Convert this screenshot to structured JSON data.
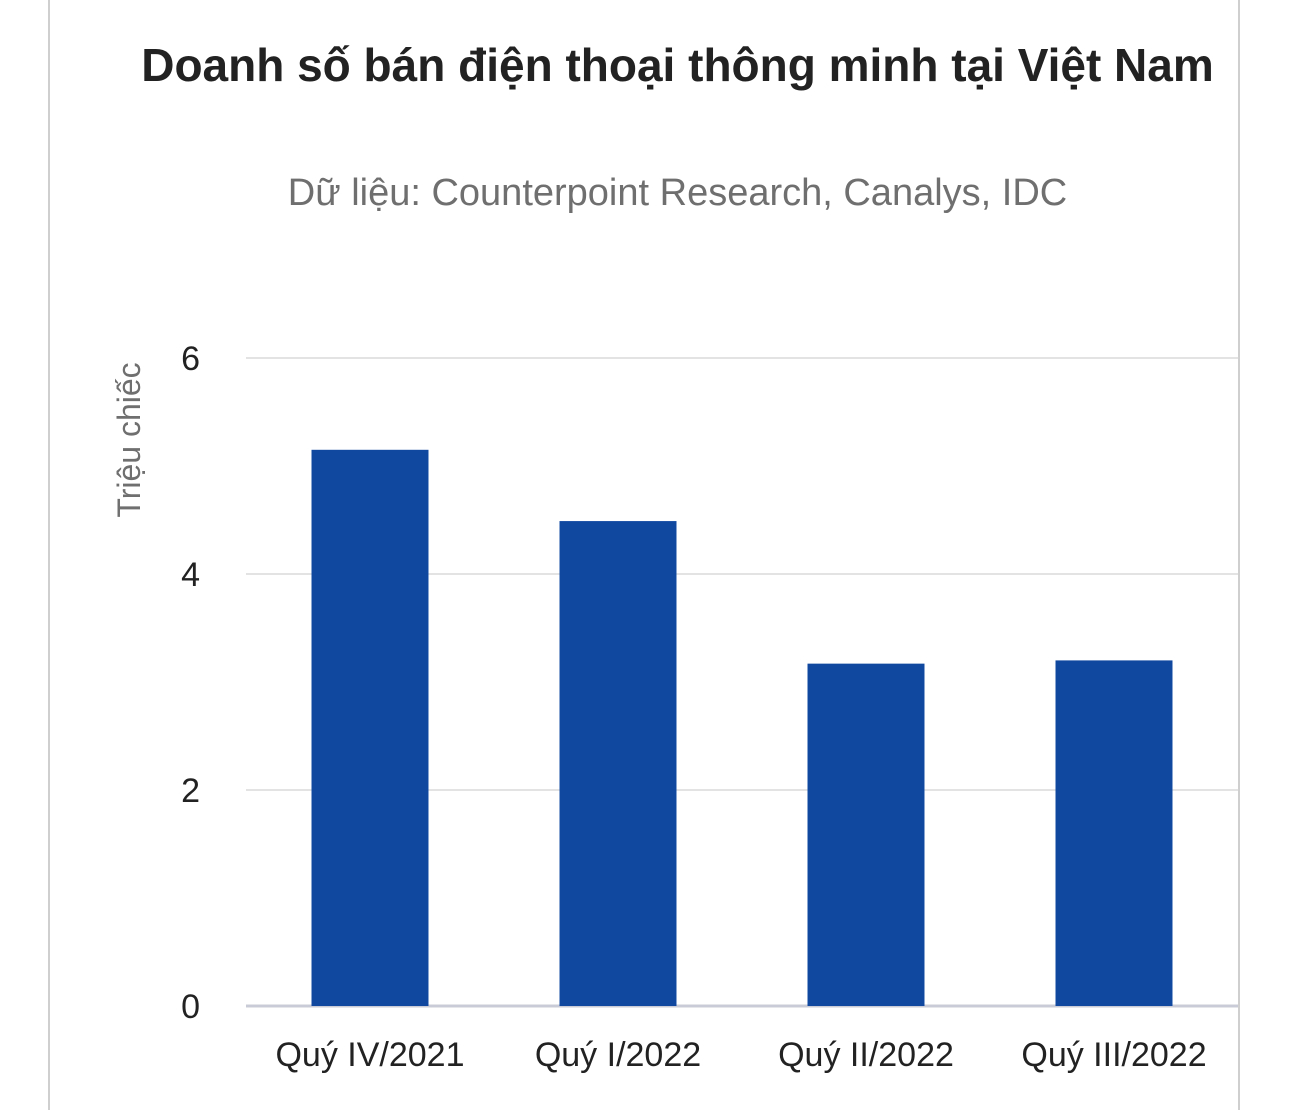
{
  "chart_data": {
    "type": "bar",
    "title": "Doanh số bán điện thoại thông minh tại Việt Nam",
    "subtitle": "Dữ liệu: Counterpoint Research, Canalys, IDC",
    "xlabel": "",
    "ylabel": "Triệu chiếc",
    "categories": [
      "Quý IV/2021",
      "Quý I/2022",
      "Quý II/2022",
      "Quý III/2022"
    ],
    "values": [
      5.15,
      4.49,
      3.17,
      3.2
    ],
    "ylim": [
      0,
      6
    ],
    "yticks": [
      0,
      2,
      4,
      6
    ],
    "grid": true,
    "legend": "none",
    "colors": {
      "bar": "#1048a0",
      "grid": "#e3e3e3",
      "baseline": "#c9ccd6"
    }
  }
}
